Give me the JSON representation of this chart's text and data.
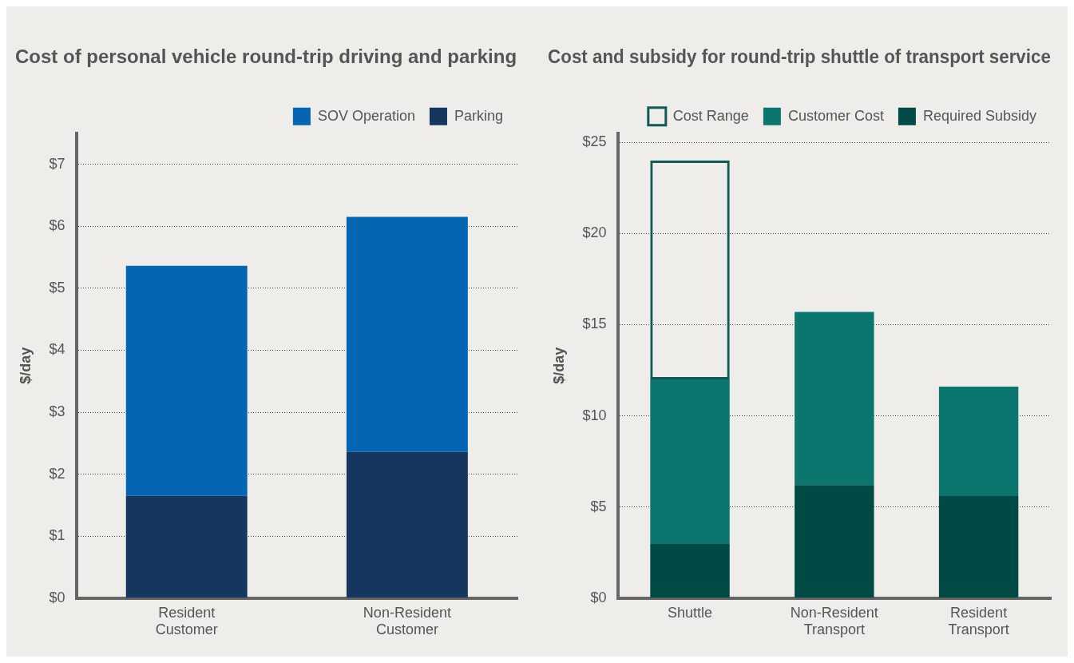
{
  "chart_data": [
    {
      "type": "bar",
      "title": "Cost of personal vehicle round-trip driving and parking",
      "ylabel": "$/day",
      "categories": [
        "Resident Customer",
        "Non-Resident Customer"
      ],
      "stacked": true,
      "series": [
        {
          "name": "Parking",
          "color": "#15365f",
          "values": [
            1.65,
            2.36
          ]
        },
        {
          "name": "SOV Operation",
          "color": "#0465b2",
          "values": [
            3.71,
            3.79
          ]
        }
      ],
      "ylim": [
        0,
        7.5
      ],
      "yticks": [
        {
          "value": 0,
          "label": "$0"
        },
        {
          "value": 1,
          "label": "$1"
        },
        {
          "value": 2,
          "label": "$2"
        },
        {
          "value": 3,
          "label": "$3"
        },
        {
          "value": 4,
          "label": "$4"
        },
        {
          "value": 5,
          "label": "$5"
        },
        {
          "value": 6,
          "label": "$6"
        },
        {
          "value": 7,
          "label": "$7"
        }
      ],
      "grid": "y",
      "legend": "top right"
    },
    {
      "type": "bar",
      "title": "Cost and subsidy for round-trip shuttle of transport service",
      "ylabel": "$/day",
      "categories": [
        "Shuttle",
        "Non-Resident Transport",
        "Resident Transport"
      ],
      "stacked": true,
      "series": [
        {
          "name": "Required Subsidy",
          "color": "#004a45",
          "values": [
            3,
            6.2,
            5.6
          ]
        },
        {
          "name": "Customer Cost",
          "color": "#0a766d",
          "values": [
            9,
            9.5,
            6
          ]
        },
        {
          "name": "Cost Range",
          "color": "#0f5a55",
          "values": [
            12,
            null,
            null
          ]
        }
      ],
      "ylim": [
        0,
        25.5
      ],
      "yticks": [
        {
          "value": 0,
          "label": "$0"
        },
        {
          "value": 5,
          "label": "$5"
        },
        {
          "value": 10,
          "label": "$10"
        },
        {
          "value": 15,
          "label": "$15"
        },
        {
          "value": 20,
          "label": "$20"
        },
        {
          "value": 25,
          "label": "$25"
        }
      ],
      "grid": "y",
      "legend": "top right"
    }
  ]
}
